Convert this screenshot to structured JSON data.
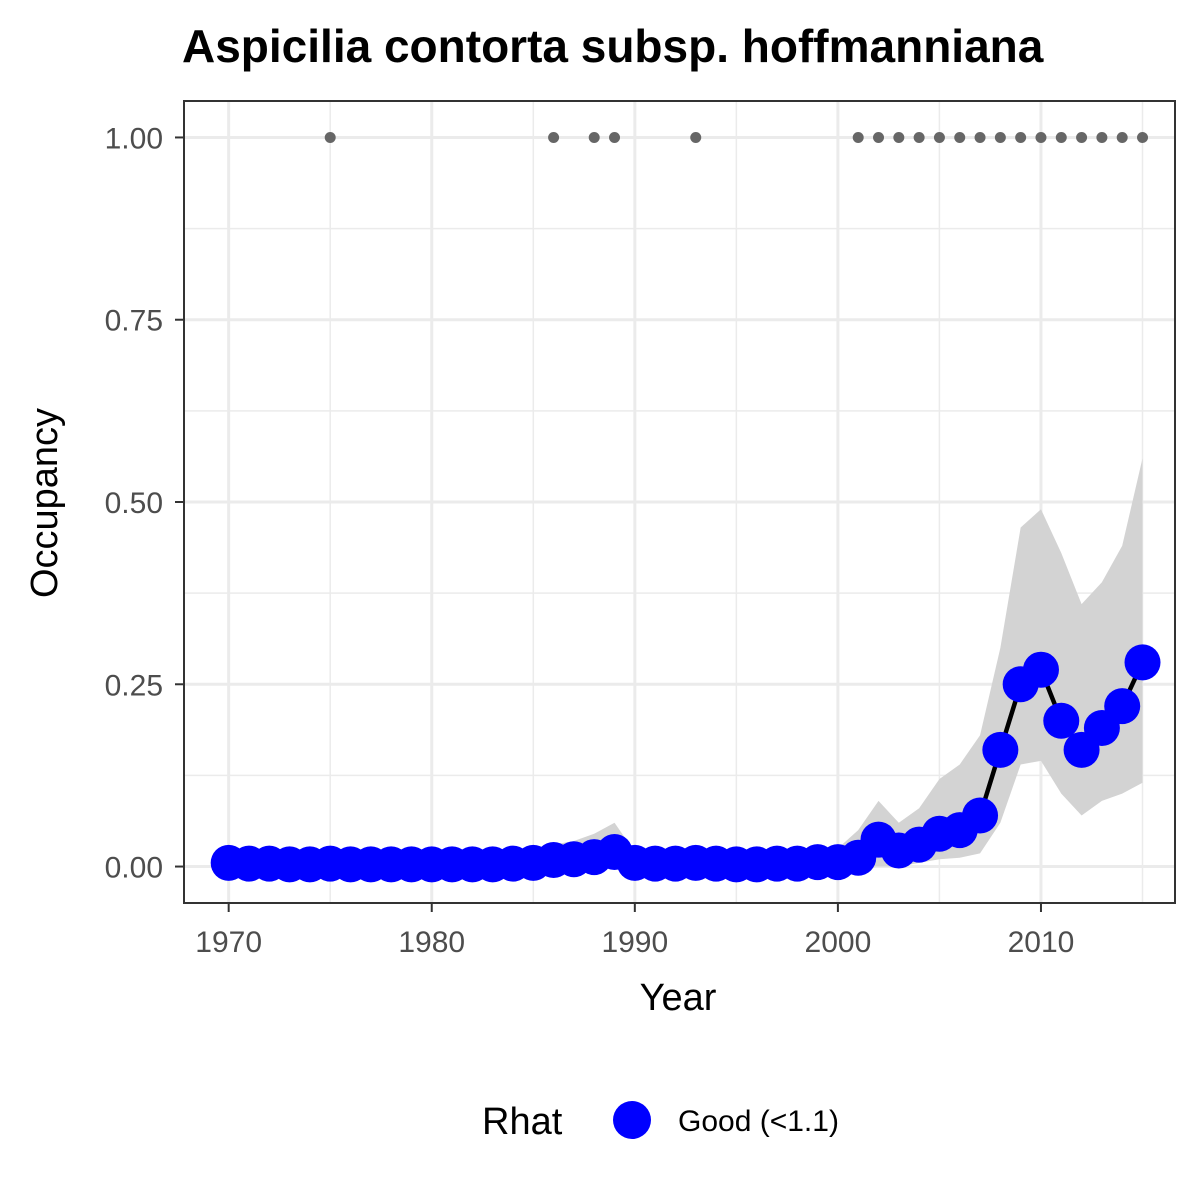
{
  "chart_data": {
    "type": "line",
    "title": "Aspicilia contorta subsp. hoffmanniana",
    "xlabel": "Year",
    "ylabel": "Occupancy",
    "xlim": [
      1967.8,
      2016.6
    ],
    "ylim": [
      -0.05,
      1.05
    ],
    "x_ticks": [
      1970,
      1980,
      1990,
      2000,
      2010
    ],
    "y_ticks": [
      0,
      0.25,
      0.5,
      0.75,
      1.0
    ],
    "x_tick_labels": [
      "1970",
      "1980",
      "1990",
      "2000",
      "2010"
    ],
    "y_tick_labels": [
      "0.00",
      "0.25",
      "0.50",
      "0.75",
      "1.00"
    ],
    "x_minor_ticks": [
      1975,
      1985,
      1995,
      2005,
      2015
    ],
    "y_minor_ticks": [
      0.125,
      0.375,
      0.625,
      0.875
    ],
    "grid": true,
    "legend": {
      "title": "Rhat",
      "position": "bottom",
      "entries": [
        {
          "label": "Good (<1.1)",
          "color": "#0000ff"
        }
      ]
    },
    "colors": {
      "line": "#000000",
      "points": "#0000ff",
      "ribbon": "#d3d3d3",
      "detections": "#666666",
      "panel_border": "#333333",
      "grid": "#ebebeb"
    },
    "years": [
      1970,
      1971,
      1972,
      1973,
      1974,
      1975,
      1976,
      1977,
      1978,
      1979,
      1980,
      1981,
      1982,
      1983,
      1984,
      1985,
      1986,
      1987,
      1988,
      1989,
      1990,
      1991,
      1992,
      1993,
      1994,
      1995,
      1996,
      1997,
      1998,
      1999,
      2000,
      2001,
      2002,
      2003,
      2004,
      2005,
      2006,
      2007,
      2008,
      2009,
      2010,
      2011,
      2012,
      2013,
      2014,
      2015
    ],
    "series": [
      {
        "name": "Good (<1.1)",
        "values": [
          0.005,
          0.004,
          0.004,
          0.003,
          0.003,
          0.004,
          0.003,
          0.003,
          0.003,
          0.003,
          0.003,
          0.003,
          0.003,
          0.003,
          0.004,
          0.005,
          0.009,
          0.01,
          0.013,
          0.02,
          0.005,
          0.004,
          0.004,
          0.005,
          0.004,
          0.003,
          0.003,
          0.004,
          0.004,
          0.006,
          0.006,
          0.012,
          0.037,
          0.022,
          0.03,
          0.045,
          0.05,
          0.07,
          0.16,
          0.25,
          0.27,
          0.2,
          0.16,
          0.19,
          0.22,
          0.28
        ],
        "lower": [
          0,
          0,
          0,
          0,
          0,
          0,
          0,
          0,
          0,
          0,
          0,
          0,
          0,
          0,
          0,
          0,
          0,
          0,
          0,
          0,
          0,
          0,
          0,
          0,
          0,
          0,
          0,
          0,
          0,
          0,
          0,
          0,
          0,
          0,
          0.005,
          0.01,
          0.012,
          0.018,
          0.06,
          0.14,
          0.145,
          0.1,
          0.07,
          0.09,
          0.1,
          0.115
        ],
        "upper": [
          0.02,
          0.015,
          0.015,
          0.012,
          0.012,
          0.015,
          0.012,
          0.012,
          0.012,
          0.012,
          0.012,
          0.012,
          0.012,
          0.012,
          0.015,
          0.02,
          0.03,
          0.035,
          0.045,
          0.06,
          0.02,
          0.015,
          0.015,
          0.02,
          0.015,
          0.012,
          0.012,
          0.015,
          0.015,
          0.02,
          0.025,
          0.05,
          0.09,
          0.06,
          0.08,
          0.12,
          0.14,
          0.18,
          0.3,
          0.465,
          0.49,
          0.43,
          0.36,
          0.39,
          0.44,
          0.56
        ]
      }
    ],
    "detections": {
      "years": [
        1975,
        1986,
        1988,
        1989,
        1993,
        2001,
        2002,
        2003,
        2004,
        2005,
        2006,
        2007,
        2008,
        2009,
        2010,
        2011,
        2012,
        2013,
        2014,
        2015
      ],
      "value": 1.0
    }
  }
}
